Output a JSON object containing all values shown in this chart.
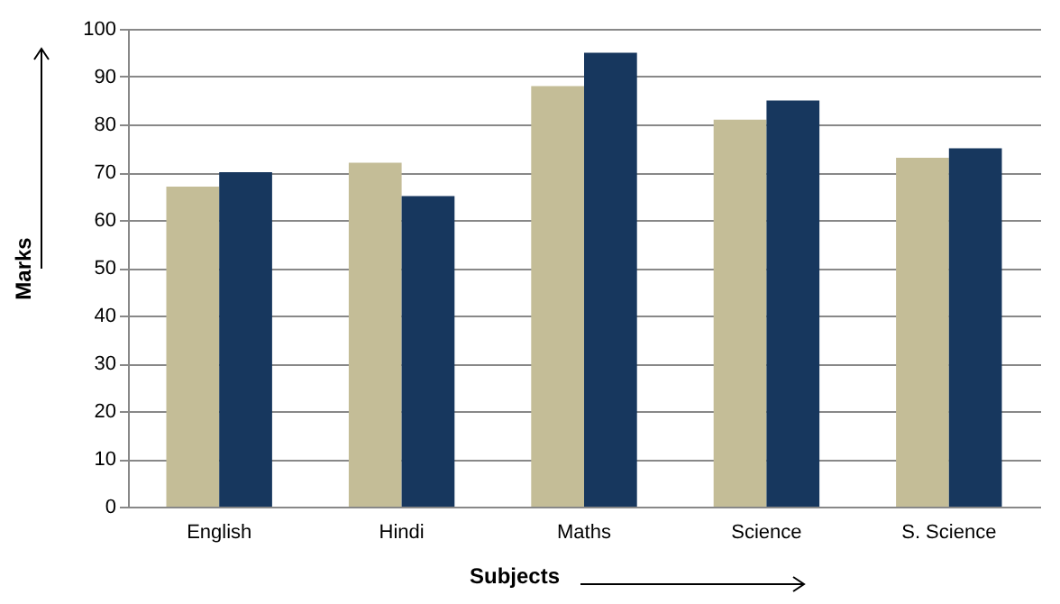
{
  "chart_data": {
    "type": "bar",
    "xlabel": "Subjects",
    "ylabel": "Marks",
    "categories": [
      "English",
      "Hindi",
      "Maths",
      "Science",
      "S. Science"
    ],
    "series": [
      {
        "color": "#c4bd97",
        "values": [
          67,
          72,
          88,
          81,
          73
        ]
      },
      {
        "color": "#17375e",
        "values": [
          70,
          65,
          95,
          85,
          75
        ]
      }
    ],
    "ylim": [
      0,
      100
    ],
    "yticks": [
      0,
      10,
      20,
      30,
      40,
      50,
      60,
      70,
      80,
      90,
      100
    ],
    "grid": "y"
  }
}
